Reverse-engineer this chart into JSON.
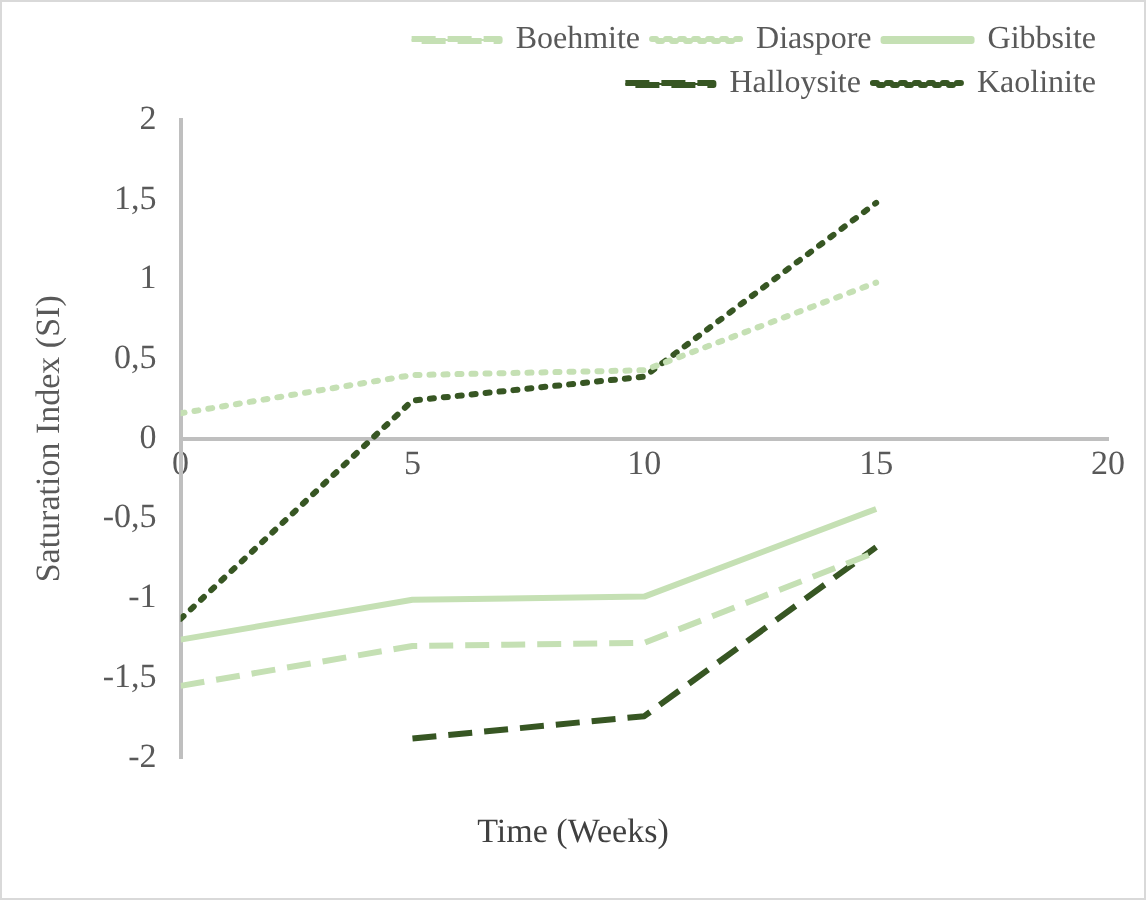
{
  "chart_data": {
    "type": "line",
    "xlabel": "Time (Weeks)",
    "ylabel": "Saturation Index (SI)",
    "x": [
      0,
      5,
      10,
      15
    ],
    "xlim": [
      0,
      20
    ],
    "xticks": [
      0,
      5,
      10,
      15,
      20
    ],
    "ylim": [
      -2,
      2
    ],
    "yticks": [
      {
        "value": -2,
        "label": "-2"
      },
      {
        "value": -1.5,
        "label": "-1,5"
      },
      {
        "value": -1,
        "label": "-1"
      },
      {
        "value": -0.5,
        "label": "-0,5"
      },
      0,
      {
        "value": 0.5,
        "label": "0,5"
      },
      1,
      {
        "value": 1.5,
        "label": "1,5"
      },
      2
    ],
    "grid": false,
    "legend": "top right",
    "marker": "none",
    "series": [
      {
        "name": "Boehmite",
        "color": "#c5e0b4",
        "line_style": "dashed",
        "values": [
          -1.55,
          -1.3,
          -1.28,
          -0.71
        ]
      },
      {
        "name": "Diaspore",
        "color": "#c5e0b4",
        "line_style": "dotted",
        "values": [
          0.16,
          0.4,
          0.43,
          0.98
        ]
      },
      {
        "name": "Gibbsite",
        "color": "#c5e0b4",
        "line_style": "solid",
        "values": [
          -1.26,
          -1.01,
          -0.99,
          -0.44
        ]
      },
      {
        "name": "Halloysite",
        "color": "#375623",
        "line_style": "dashed",
        "values": [
          null,
          -1.88,
          -1.74,
          -0.68
        ]
      },
      {
        "name": "Kaolinite",
        "color": "#375623",
        "line_style": "dotted",
        "values": [
          -1.13,
          0.24,
          0.39,
          1.48
        ]
      }
    ]
  }
}
